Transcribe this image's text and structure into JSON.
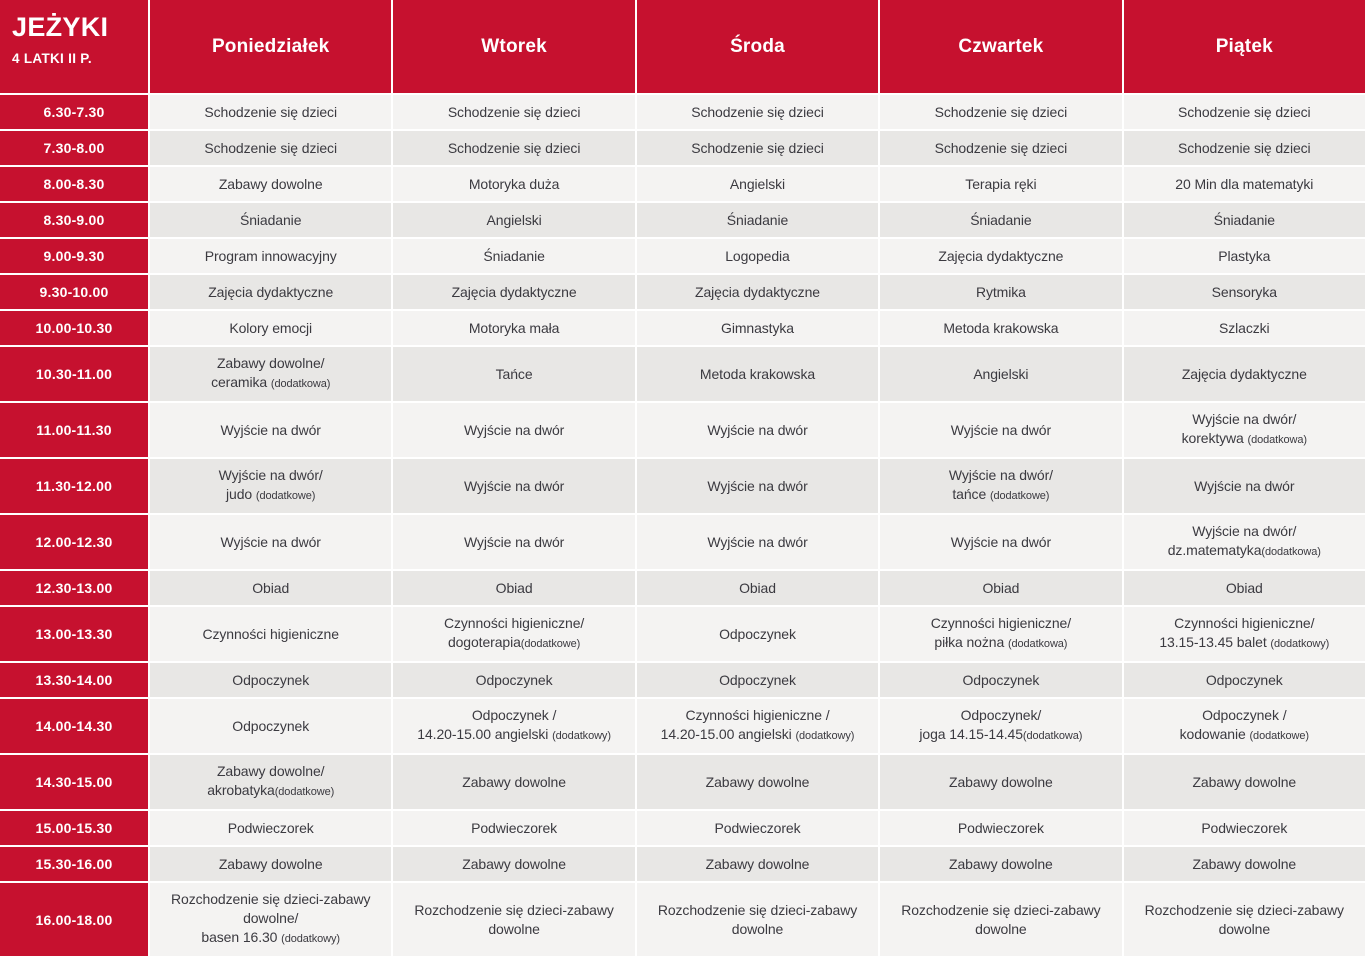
{
  "header": {
    "title": "JEŻYKI",
    "subtitle": "4 LATKI II P.",
    "days": [
      "Poniedziałek",
      "Wtorek",
      "Środa",
      "Czwartek",
      "Piątek"
    ]
  },
  "colors": {
    "accent_red": "#C6112F",
    "row_light": "#F4F3F2",
    "row_dark": "#E8E7E5",
    "text": "#3B3A40"
  },
  "schedule": {
    "rows": [
      {
        "time": "6.30-7.30",
        "cells": [
          "Schodzenie się dzieci",
          "Schodzenie się dzieci",
          "Schodzenie się dzieci",
          "Schodzenie się dzieci",
          "Schodzenie się dzieci"
        ]
      },
      {
        "time": "7.30-8.00",
        "cells": [
          "Schodzenie się dzieci",
          "Schodzenie się dzieci",
          "Schodzenie się dzieci",
          "Schodzenie się dzieci",
          "Schodzenie się dzieci"
        ]
      },
      {
        "time": "8.00-8.30",
        "cells": [
          "Zabawy dowolne",
          "Motoryka duża",
          "Angielski",
          "Terapia ręki",
          "20 Min dla matematyki"
        ]
      },
      {
        "time": "8.30-9.00",
        "cells": [
          "Śniadanie",
          "Angielski",
          "Śniadanie",
          "Śniadanie",
          "Śniadanie"
        ]
      },
      {
        "time": "9.00-9.30",
        "cells": [
          "Program innowacyjny",
          "Śniadanie",
          "Logopedia",
          "Zajęcia dydaktyczne",
          "Plastyka"
        ]
      },
      {
        "time": "9.30-10.00",
        "cells": [
          "Zajęcia dydaktyczne",
          "Zajęcia dydaktyczne",
          "Zajęcia dydaktyczne",
          "Rytmika",
          "Sensoryka"
        ]
      },
      {
        "time": "10.00-10.30",
        "cells": [
          "Kolory emocji",
          "Motoryka mała",
          "Gimnastyka",
          "Metoda krakowska",
          "Szlaczki"
        ]
      },
      {
        "time": "10.30-11.00",
        "cells": [
          "Zabawy dowolne/\nceramika (dodatkowa)",
          "Tańce",
          "Metoda krakowska",
          "Angielski",
          "Zajęcia dydaktyczne"
        ]
      },
      {
        "time": "11.00-11.30",
        "cells": [
          "Wyjście na dwór",
          "Wyjście na dwór",
          "Wyjście na dwór",
          "Wyjście na dwór",
          "Wyjście na dwór/\nkorektywa (dodatkowa)"
        ]
      },
      {
        "time": "11.30-12.00",
        "cells": [
          "Wyjście na dwór/\njudo (dodatkowe)",
          "Wyjście na dwór",
          "Wyjście na dwór",
          "Wyjście na dwór/\ntańce (dodatkowe)",
          "Wyjście na dwór"
        ]
      },
      {
        "time": "12.00-12.30",
        "cells": [
          "Wyjście na dwór",
          "Wyjście na dwór",
          "Wyjście na dwór",
          "Wyjście na dwór",
          "Wyjście na dwór/\ndz.matematyka(dodatkowa)"
        ]
      },
      {
        "time": "12.30-13.00",
        "cells": [
          "Obiad",
          "Obiad",
          "Obiad",
          "Obiad",
          "Obiad"
        ]
      },
      {
        "time": "13.00-13.30",
        "cells": [
          "Czynności higieniczne",
          "Czynności higieniczne/\ndogoterapia(dodatkowe)",
          "Odpoczynek",
          "Czynności higieniczne/\npiłka nożna (dodatkowa)",
          "Czynności higieniczne/\n13.15-13.45 balet (dodatkowy)"
        ]
      },
      {
        "time": "13.30-14.00",
        "cells": [
          "Odpoczynek",
          "Odpoczynek",
          "Odpoczynek",
          "Odpoczynek",
          "Odpoczynek"
        ]
      },
      {
        "time": "14.00-14.30",
        "cells": [
          "Odpoczynek",
          "Odpoczynek /\n14.20-15.00 angielski (dodatkowy)",
          "Czynności higieniczne /\n14.20-15.00 angielski (dodatkowy)",
          "Odpoczynek/\njoga 14.15-14.45(dodatkowa)",
          "Odpoczynek /\nkodowanie (dodatkowe)"
        ]
      },
      {
        "time": "14.30-15.00",
        "cells": [
          "Zabawy dowolne/\nakrobatyka(dodatkowe)",
          "Zabawy dowolne",
          "Zabawy dowolne",
          "Zabawy dowolne",
          "Zabawy dowolne"
        ]
      },
      {
        "time": "15.00-15.30",
        "cells": [
          "Podwieczorek",
          "Podwieczorek",
          "Podwieczorek",
          "Podwieczorek",
          "Podwieczorek"
        ]
      },
      {
        "time": "15.30-16.00",
        "cells": [
          "Zabawy dowolne",
          "Zabawy dowolne",
          "Zabawy dowolne",
          "Zabawy dowolne",
          "Zabawy dowolne"
        ]
      },
      {
        "time": "16.00-18.00",
        "cells": [
          "Rozchodzenie się dzieci-zabawy dowolne/\nbasen 16.30 (dodatkowy)",
          "Rozchodzenie się dzieci-zabawy dowolne",
          "Rozchodzenie się dzieci-zabawy dowolne",
          "Rozchodzenie się dzieci-zabawy dowolne",
          "Rozchodzenie się dzieci-zabawy dowolne"
        ]
      }
    ]
  }
}
